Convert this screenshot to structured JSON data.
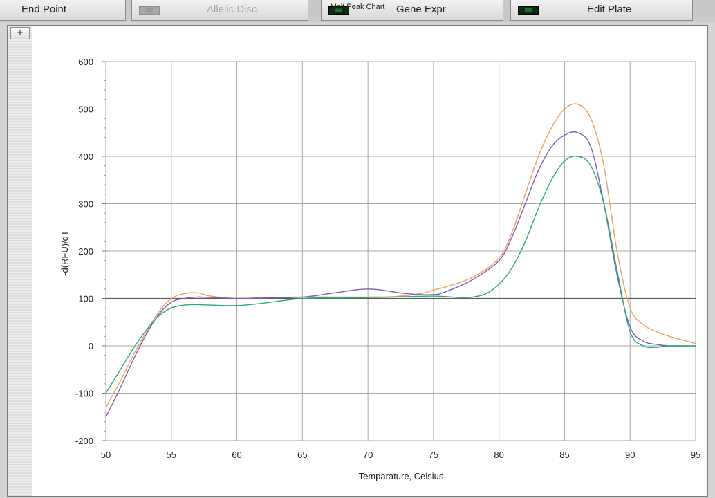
{
  "toolbar": {
    "end_point": "End Point",
    "allelic_disc": "Allelic Disc",
    "gene_expr": "Gene Expr",
    "edit_plate": "Edit Plate"
  },
  "expand_label": "+",
  "chart_data": {
    "type": "line",
    "title": "Melt Peak Chart",
    "xlabel": "Temparature, Celsius",
    "ylabel": "-d(RFU)/dT",
    "xlim": [
      50,
      95
    ],
    "ylim": [
      -200,
      600
    ],
    "xticks": [
      50,
      55,
      60,
      65,
      70,
      75,
      80,
      85,
      90,
      95
    ],
    "yticks": [
      -200,
      -100,
      0,
      100,
      200,
      300,
      400,
      500,
      600
    ],
    "grid": true,
    "series": [
      {
        "color": "#f0a060",
        "x": [
          50,
          51,
          52,
          53,
          54,
          55,
          56,
          57,
          58,
          60,
          62,
          65,
          68,
          70,
          72,
          74,
          75,
          76,
          78,
          80,
          81,
          82,
          83,
          84,
          85,
          86,
          87,
          88,
          89,
          90,
          91,
          92,
          93,
          95
        ],
        "y": [
          -130,
          -80,
          -25,
          25,
          70,
          100,
          110,
          112,
          105,
          100,
          102,
          103,
          103,
          103,
          104,
          110,
          118,
          125,
          145,
          185,
          240,
          320,
          400,
          460,
          500,
          510,
          480,
          380,
          200,
          80,
          45,
          30,
          20,
          5
        ]
      },
      {
        "color": "#7b5fb4",
        "x": [
          50,
          51,
          52,
          53,
          54,
          55,
          56,
          57,
          58,
          60,
          62,
          65,
          67,
          69,
          70,
          71,
          73,
          75,
          76,
          78,
          80,
          81,
          82,
          83,
          84,
          85,
          86,
          87,
          88,
          89,
          90,
          91,
          92,
          93,
          95
        ],
        "y": [
          -150,
          -95,
          -35,
          20,
          65,
          92,
          100,
          103,
          102,
          100,
          101,
          103,
          110,
          118,
          120,
          118,
          110,
          108,
          115,
          140,
          180,
          230,
          300,
          370,
          420,
          445,
          450,
          420,
          300,
          150,
          40,
          10,
          3,
          0,
          0
        ]
      },
      {
        "color": "#2ba87a",
        "x": [
          50,
          51,
          52,
          53,
          54,
          55,
          56,
          57,
          58,
          60,
          62,
          65,
          68,
          70,
          72,
          75,
          77,
          78,
          79,
          80,
          81,
          82,
          83,
          84,
          85,
          86,
          87,
          88,
          89,
          90,
          91,
          92,
          93,
          95
        ],
        "y": [
          -100,
          -55,
          -10,
          30,
          62,
          80,
          86,
          87,
          86,
          85,
          90,
          100,
          101,
          102,
          103,
          105,
          102,
          103,
          110,
          130,
          165,
          220,
          290,
          350,
          390,
          400,
          380,
          300,
          160,
          30,
          0,
          -3,
          0,
          0
        ]
      }
    ]
  }
}
